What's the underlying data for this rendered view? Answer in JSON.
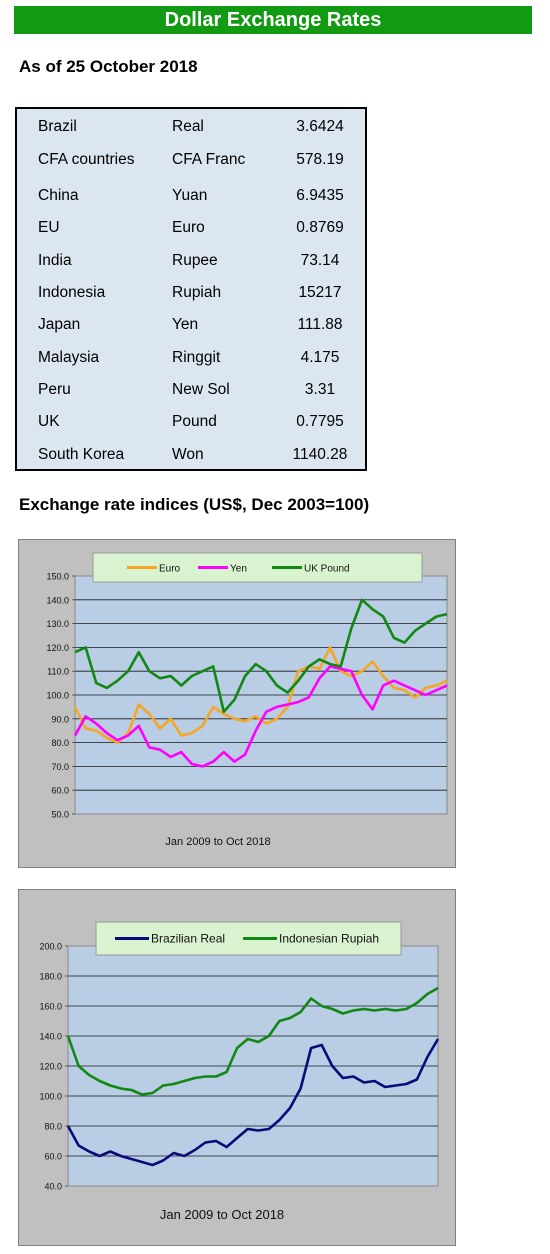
{
  "header": {
    "title": "Dollar Exchange Rates",
    "as_of": "As of 25 October 2018"
  },
  "rates_table": {
    "rows": [
      {
        "country": "Brazil",
        "currency": "Real",
        "rate": "3.6424"
      },
      {
        "country": "CFA countries",
        "currency": "CFA Franc",
        "rate": "578.19"
      },
      {
        "country": "China",
        "currency": "Yuan",
        "rate": "6.9435"
      },
      {
        "country": "EU",
        "currency": "Euro",
        "rate": "0.8769"
      },
      {
        "country": "India",
        "currency": "Rupee",
        "rate": "73.14"
      },
      {
        "country": "Indonesia",
        "currency": "Rupiah",
        "rate": "15217"
      },
      {
        "country": "Japan",
        "currency": "Yen",
        "rate": "111.88"
      },
      {
        "country": "Malaysia",
        "currency": "Ringgit",
        "rate": "4.175"
      },
      {
        "country": "Peru",
        "currency": "New Sol",
        "rate": "3.31"
      },
      {
        "country": "UK",
        "currency": "Pound",
        "rate": "0.7795"
      },
      {
        "country": "South Korea",
        "currency": "Won",
        "rate": "1140.28"
      }
    ]
  },
  "section_title": "Exchange rate indices (US$, Dec 2003=100)",
  "chart_data": [
    {
      "type": "line",
      "title": "",
      "xlabel": "Jan 2009  to Oct 2018",
      "ylabel": "",
      "x_range": [
        "2009-01",
        "2018-10"
      ],
      "ylim": [
        50,
        150
      ],
      "yticks": [
        "50.0",
        "60.0",
        "70.0",
        "80.0",
        "90.0",
        "100.0",
        "110.0",
        "120.0",
        "130.0",
        "140.0",
        "150.0"
      ],
      "grid": true,
      "legend": "top-center",
      "series": [
        {
          "name": "Euro",
          "color": "#f5a623",
          "values": [
            95,
            86,
            85,
            82,
            80,
            84,
            96,
            92,
            86,
            90,
            83,
            84,
            87,
            95,
            92,
            90,
            89,
            91,
            88,
            90,
            95,
            110,
            112,
            111,
            120,
            110,
            108,
            110,
            114,
            108,
            103,
            102,
            99,
            103,
            104,
            106
          ]
        },
        {
          "name": "Yen",
          "color": "#ff00ff",
          "values": [
            83,
            91,
            88,
            84,
            81,
            83,
            87,
            78,
            77,
            74,
            76,
            71,
            70,
            72,
            76,
            72,
            75,
            85,
            93,
            95,
            96,
            97,
            99,
            107,
            112,
            111,
            110,
            100,
            94,
            104,
            106,
            104,
            102,
            100,
            102,
            104
          ]
        },
        {
          "name": "UK Pound",
          "color": "#118811",
          "values": [
            118,
            120,
            105,
            103,
            106,
            110,
            118,
            110,
            107,
            108,
            104,
            108,
            110,
            112,
            93,
            98,
            108,
            113,
            110,
            104,
            101,
            106,
            112,
            115,
            113,
            112,
            128,
            140,
            136,
            133,
            124,
            122,
            127,
            130,
            133,
            134
          ]
        }
      ]
    },
    {
      "type": "line",
      "title": "",
      "xlabel": "Jan 2009  to Oct 2018",
      "ylabel": "",
      "x_range": [
        "2009-01",
        "2018-10"
      ],
      "ylim": [
        40,
        200
      ],
      "yticks": [
        "40.0",
        "60.0",
        "80.0",
        "100.0",
        "120.0",
        "140.0",
        "160.0",
        "180.0",
        "200.0"
      ],
      "grid": true,
      "legend": "top-center",
      "series": [
        {
          "name": "Brazilian Real",
          "color": "#0a0a78",
          "values": [
            80,
            67,
            63,
            60,
            63,
            60,
            58,
            56,
            54,
            57,
            62,
            60,
            64,
            69,
            70,
            66,
            72,
            78,
            77,
            78,
            84,
            92,
            105,
            132,
            134,
            120,
            112,
            113,
            109,
            110,
            106,
            107,
            108,
            111,
            126,
            138
          ]
        },
        {
          "name": "Indonesian Rupiah",
          "color": "#118811",
          "values": [
            140,
            120,
            114,
            110,
            107,
            105,
            104,
            101,
            102,
            107,
            108,
            110,
            112,
            113,
            113,
            116,
            132,
            138,
            136,
            140,
            150,
            152,
            156,
            165,
            160,
            158,
            155,
            157,
            158,
            157,
            158,
            157,
            158,
            162,
            168,
            172
          ]
        }
      ]
    }
  ]
}
